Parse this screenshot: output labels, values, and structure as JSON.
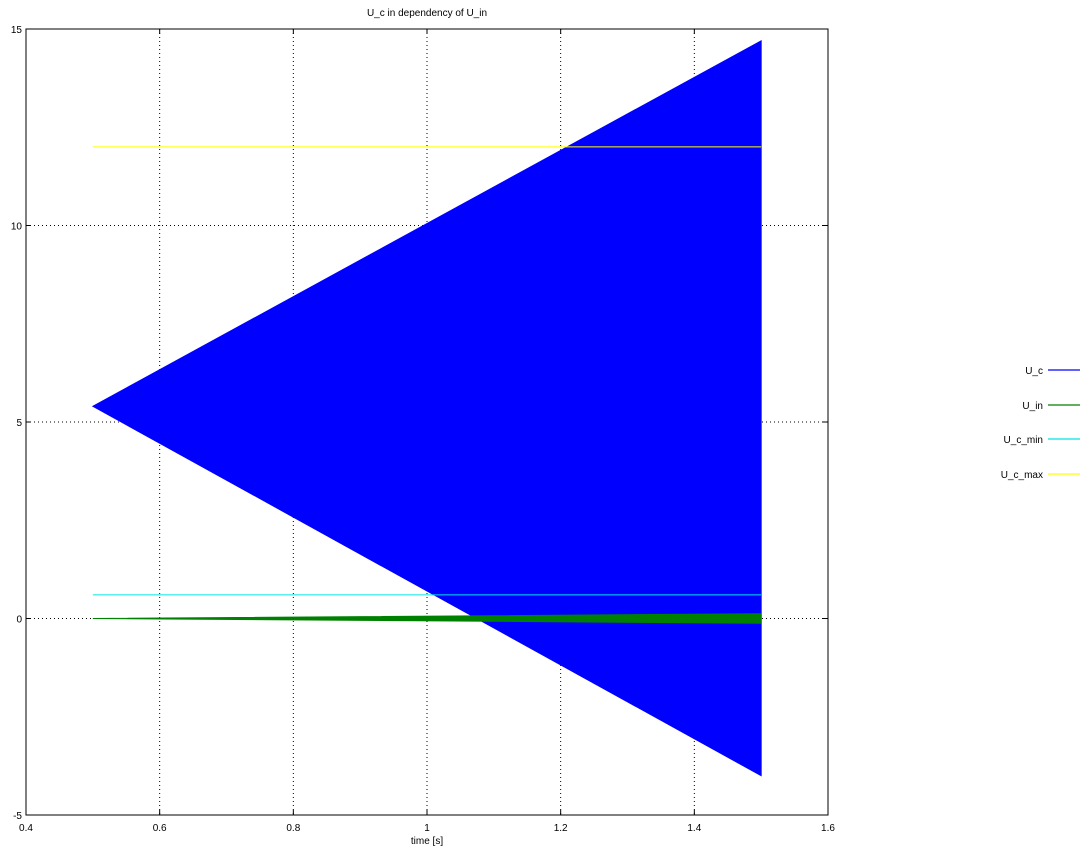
{
  "chart_data": {
    "type": "area",
    "title": "U_c in dependency of U_in",
    "xlabel": "time [s]",
    "ylabel": "",
    "xlim": [
      0.4,
      1.6
    ],
    "ylim": [
      -5,
      15
    ],
    "xticks": [
      "0.4",
      "0.6",
      "0.8",
      "1",
      "1.2",
      "1.4",
      "1.6"
    ],
    "yticks": [
      "-5",
      "0",
      "5",
      "10",
      "15"
    ],
    "grid": true,
    "legend_position": "right",
    "series": [
      {
        "name": "U_c",
        "color": "#0000ff",
        "style": "envelope",
        "x": [
          0.5,
          1.5
        ],
        "upper": [
          5.4,
          14.7
        ],
        "lower": [
          5.4,
          -4.0
        ]
      },
      {
        "name": "U_in",
        "color": "#008000",
        "style": "envelope",
        "x": [
          0.5,
          1.5
        ],
        "upper": [
          0.0,
          0.12
        ],
        "lower": [
          0.0,
          -0.12
        ]
      },
      {
        "name": "U_c_min",
        "color": "#00e5e5",
        "style": "line",
        "x": [
          0.5,
          1.5
        ],
        "values": [
          0.6,
          0.6
        ]
      },
      {
        "name": "U_c_max",
        "color": "#ffff00",
        "style": "line",
        "x": [
          0.5,
          1.5
        ],
        "values": [
          12.0,
          12.0
        ]
      }
    ]
  }
}
